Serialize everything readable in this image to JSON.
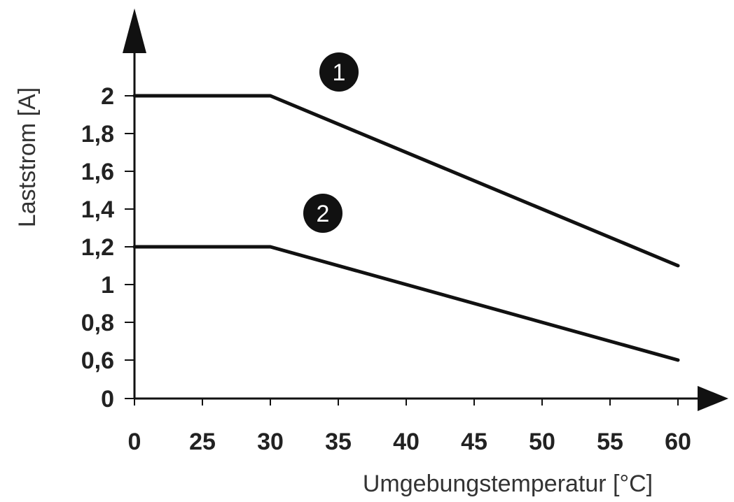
{
  "chart_data": {
    "type": "line",
    "xlabel": "Umgebungstemperatur [°C]",
    "ylabel": "Laststrom [A]",
    "x_ticks": [
      "0",
      "25",
      "30",
      "35",
      "40",
      "45",
      "50",
      "55",
      "60"
    ],
    "y_ticks": [
      "0",
      "0,6",
      "0,8",
      "1",
      "1,2",
      "1,4",
      "1,6",
      "1,8",
      "2"
    ],
    "series": [
      {
        "name": "1",
        "x": [
          0,
          30,
          60
        ],
        "y": [
          2.0,
          2.0,
          1.1
        ]
      },
      {
        "name": "2",
        "x": [
          0,
          30,
          60
        ],
        "y": [
          1.2,
          1.2,
          0.6
        ]
      }
    ],
    "grid": false,
    "legend": "numbered circle markers above each curve",
    "colors": {
      "line": "#111111",
      "marker_fill": "#111111",
      "marker_text": "#ffffff",
      "axis": "#111111"
    }
  }
}
